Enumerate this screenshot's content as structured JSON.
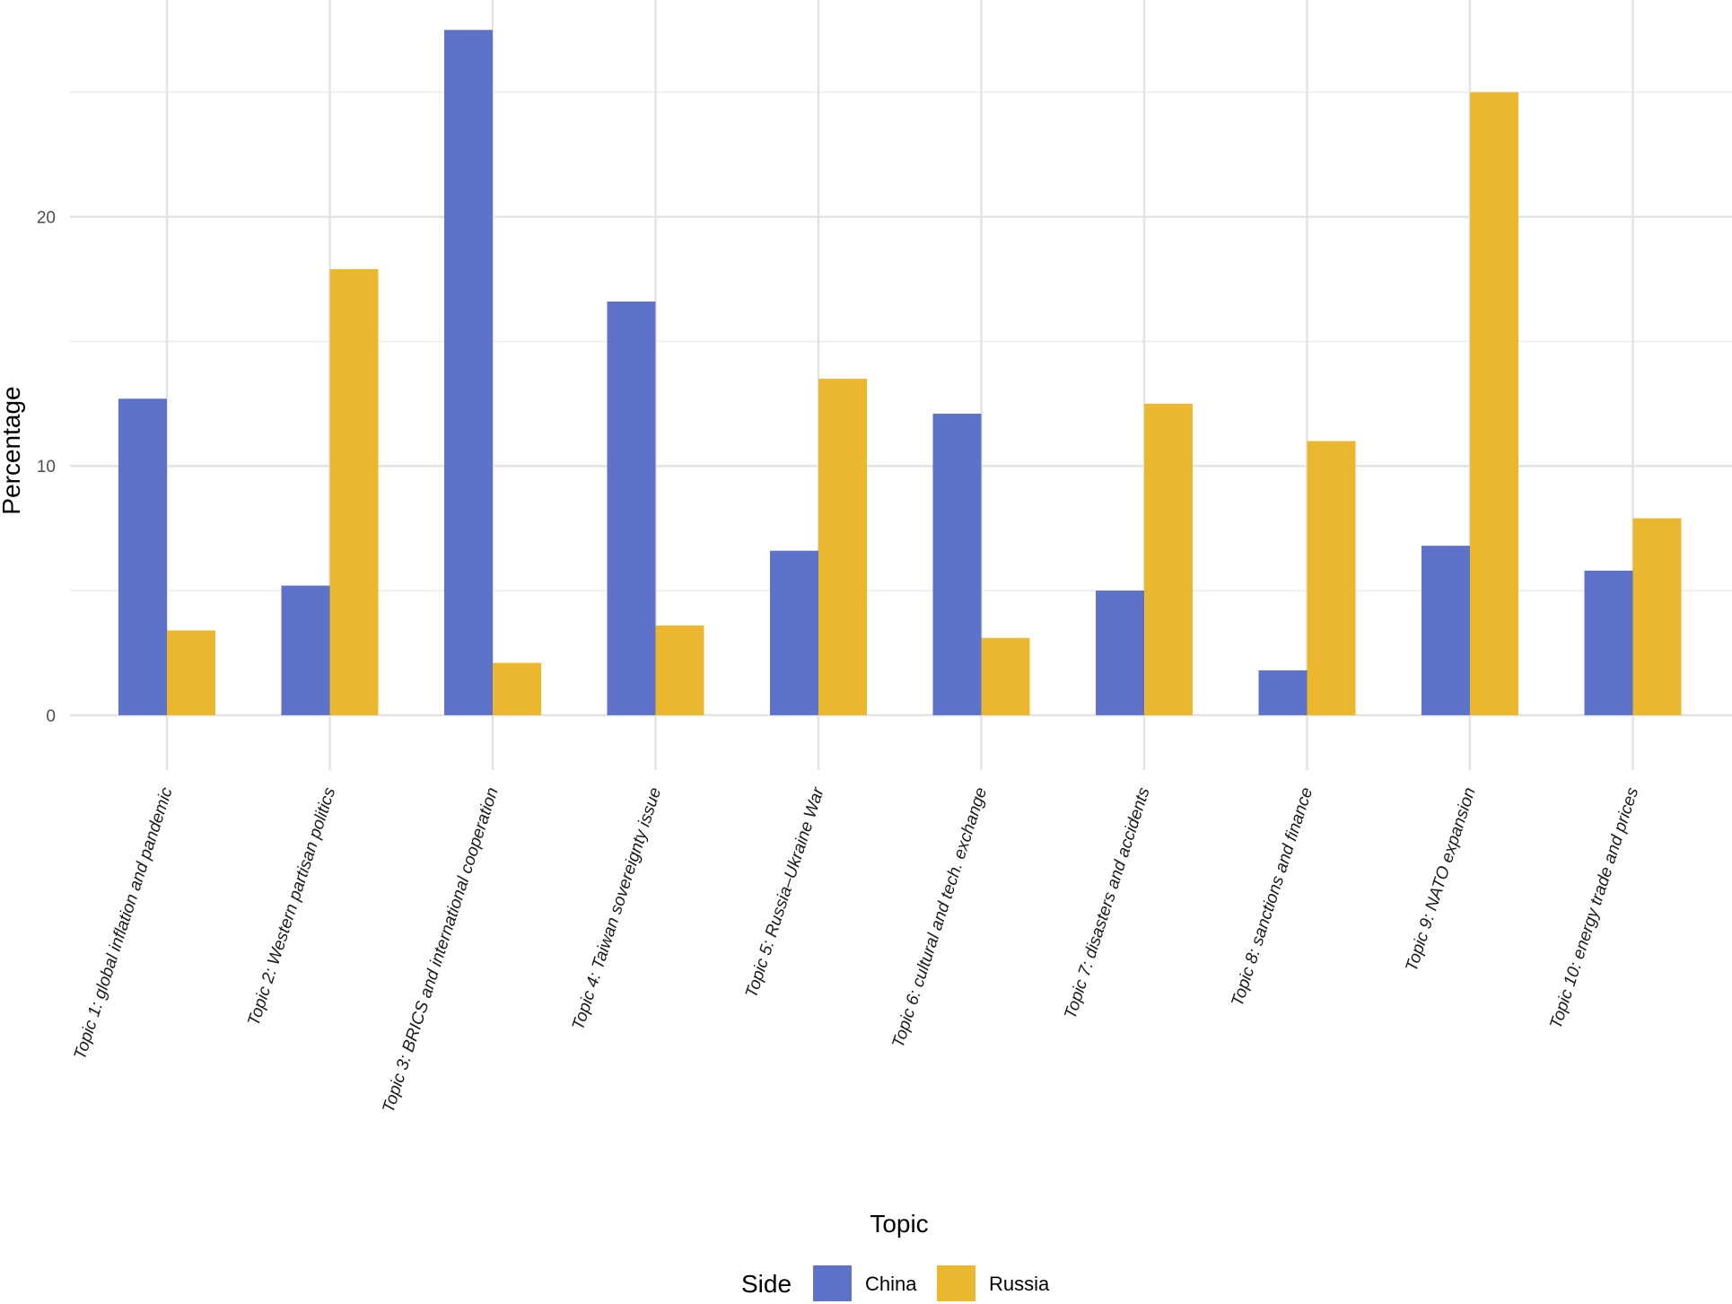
{
  "chart_data": {
    "type": "bar",
    "title": "",
    "xlabel": "Topic",
    "ylabel": "Percentage",
    "ylim": [
      -2.2,
      28.7
    ],
    "yticks": [
      0,
      10,
      20
    ],
    "minor_gridlines": [
      5,
      15,
      25
    ],
    "grid": true,
    "categories": [
      "Topic 1: global inflation and pandemic",
      "Topic 2: Western partisan politics",
      "Topic 3: BRICS and international cooperation",
      "Topic 4: Taiwan sovereignty issue",
      "Topic 5: Russia–Ukraine War",
      "Topic 6: cultural and tech. exchange",
      "Topic 7: disasters and accidents",
      "Topic 8: sanctions and finance",
      "Topic 9: NATO expansion",
      "Topic 10: energy trade and prices"
    ],
    "series": [
      {
        "name": "China",
        "color": "#5f72c9",
        "values": [
          12.7,
          5.2,
          27.5,
          16.6,
          6.6,
          12.1,
          5.0,
          1.8,
          6.8,
          5.8
        ]
      },
      {
        "name": "Russia",
        "color": "#ebb72e",
        "values": [
          3.4,
          17.9,
          2.1,
          3.6,
          13.5,
          3.1,
          12.5,
          11.0,
          25.0,
          7.9
        ]
      }
    ],
    "legend": {
      "title": "Side",
      "position": "bottom"
    }
  }
}
